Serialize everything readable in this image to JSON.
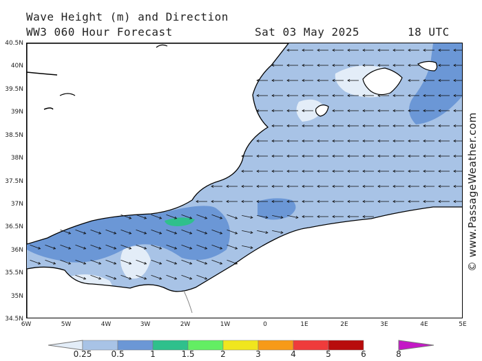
{
  "header": {
    "title_line1": "Wave Height (m) and Direction",
    "title_line2": "WW3 060 Hour Forecast",
    "date": "Sat 03 May 2025",
    "time": "18 UTC"
  },
  "map": {
    "lat_labels": [
      "40.5N",
      "40N",
      "39.5N",
      "39N",
      "38.5N",
      "38N",
      "37.5N",
      "37N",
      "36.5N",
      "36N",
      "35.5N",
      "35N",
      "34.5N"
    ],
    "lon_labels": [
      "6W",
      "5W",
      "4W",
      "3W",
      "2W",
      "1W",
      "0",
      "1E",
      "2E",
      "3E",
      "4E",
      "5E"
    ],
    "land_color": "#ffffff",
    "coast_color": "#000000",
    "predominant_wave_direction": "west"
  },
  "watermark": "© www.PassageWeather.com",
  "legend": {
    "labels": [
      "0.25",
      "0.5",
      "1",
      "1.5",
      "2",
      "3",
      "4",
      "5",
      "6",
      "8"
    ],
    "colors": [
      "#e3edf8",
      "#a8c3e6",
      "#6b97d6",
      "#2fc08c",
      "#63ee63",
      "#f0e61e",
      "#f79a18",
      "#ef3b3b",
      "#b80c0c",
      "#c418c6"
    ]
  }
}
